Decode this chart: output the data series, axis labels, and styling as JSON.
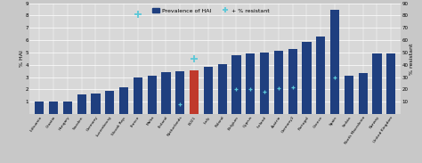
{
  "categories": [
    "Lithuania",
    "Croatia",
    "Hungary",
    "Sweden",
    "Germany",
    "Luxembourg",
    "Slovak Rep.",
    "France",
    "Malta",
    "Finland",
    "Netherlands",
    "EU21",
    "Italy",
    "Poland",
    "Belgium",
    "Cyprus",
    "Ireland",
    "Austria",
    "Germany2",
    "Portugal",
    "Greece",
    "Spain",
    "Serbia",
    "North Macedonia",
    "Norway",
    "United Kingdom"
  ],
  "bar_values": [
    1.0,
    1.0,
    1.0,
    1.6,
    1.7,
    1.9,
    2.2,
    3.0,
    3.1,
    3.4,
    3.45,
    3.55,
    3.85,
    4.05,
    4.8,
    4.9,
    5.0,
    5.15,
    5.3,
    5.9,
    6.3,
    8.5,
    3.15,
    3.35,
    4.9,
    4.95
  ],
  "bar_colors": [
    "#1f3f7f",
    "#1f3f7f",
    "#1f3f7f",
    "#1f3f7f",
    "#1f3f7f",
    "#1f3f7f",
    "#1f3f7f",
    "#1f3f7f",
    "#1f3f7f",
    "#1f3f7f",
    "#1f3f7f",
    "#c0392b",
    "#1f3f7f",
    "#1f3f7f",
    "#1f3f7f",
    "#1f3f7f",
    "#1f3f7f",
    "#1f3f7f",
    "#1f3f7f",
    "#1f3f7f",
    "#1f3f7f",
    "#1f3f7f",
    "#1f3f7f",
    "#1f3f7f",
    "#1f3f7f",
    "#1f3f7f"
  ],
  "dot_positions": [
    7,
    10,
    11,
    14,
    15,
    16,
    17,
    18,
    21
  ],
  "dot_values_left": [
    8.1,
    0.8,
    4.5,
    2.0,
    2.0,
    1.8,
    2.1,
    2.2,
    3.0
  ],
  "dot_sizes_large": [
    0,
    1,
    2
  ],
  "ylim": [
    0,
    9
  ],
  "ylim_right": [
    0,
    90
  ],
  "yticks": [
    0,
    1,
    2,
    3,
    4,
    5,
    6,
    7,
    8,
    9
  ],
  "yticks_right": [
    0,
    10,
    20,
    30,
    40,
    50,
    60,
    70,
    80,
    90
  ],
  "ylabel_left": "% HAI",
  "ylabel_right": "% resistant",
  "legend_bar_label": "Prevalence of HAI",
  "legend_dot_label": "+ % resistant",
  "bar_color_main": "#1f3f7f",
  "bar_color_eu": "#c0392b",
  "dot_color": "#5bc8d8",
  "plot_bg_color": "#d8d8d8",
  "legend_bg_color": "#c8c8c8",
  "fig_bg_color": "#c8c8c8",
  "grid_color": "#ffffff"
}
